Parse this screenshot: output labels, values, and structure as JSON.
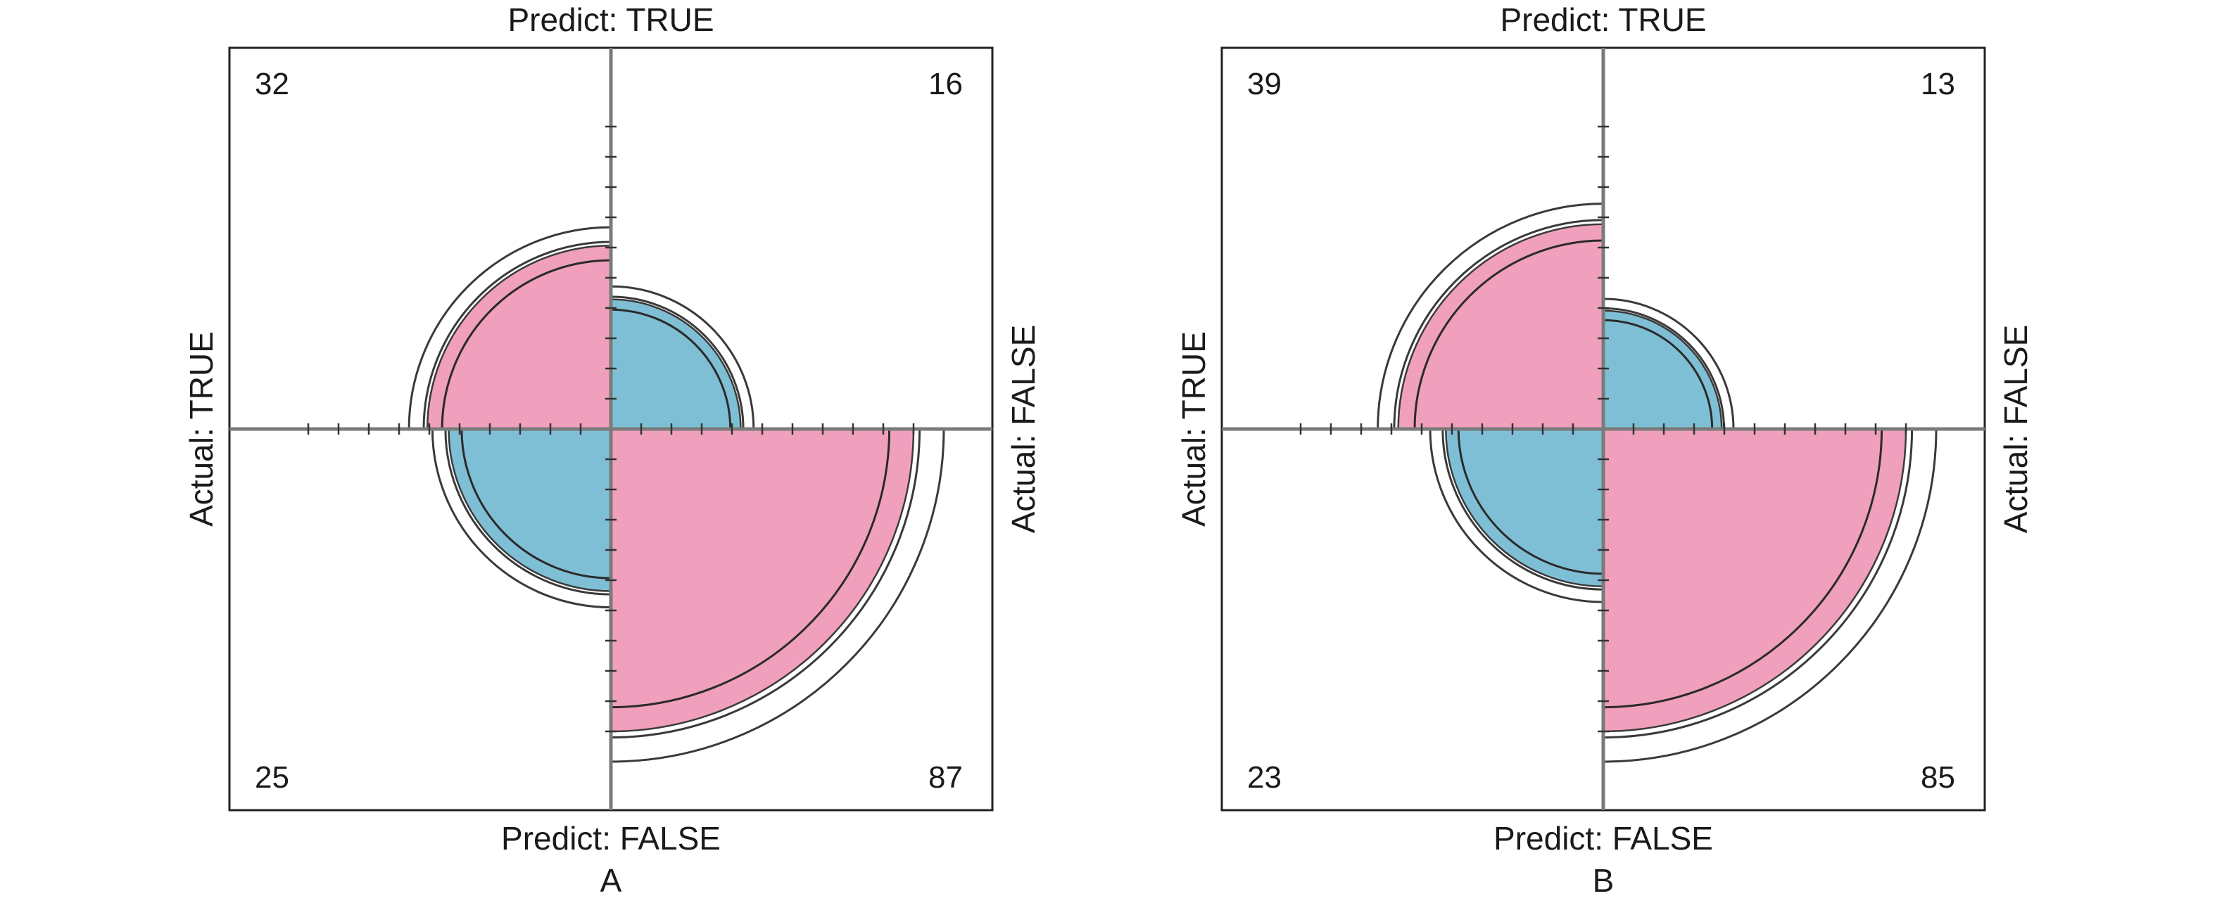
{
  "chart_data": [
    {
      "type": "fourfold",
      "caption": "A",
      "top_label": "Predict: TRUE",
      "bottom_label": "Predict: FALSE",
      "left_label": "Actual: TRUE",
      "right_label": "Actual: FALSE",
      "cells": [
        {
          "position": "top-left",
          "actual": "TRUE",
          "predict": "TRUE",
          "count": 32,
          "color": "#f0a0bc"
        },
        {
          "position": "top-right",
          "actual": "FALSE",
          "predict": "TRUE",
          "count": 16,
          "color": "#7fbfd6"
        },
        {
          "position": "bottom-left",
          "actual": "TRUE",
          "predict": "FALSE",
          "count": 25,
          "color": "#7fbfd6"
        },
        {
          "position": "bottom-right",
          "actual": "FALSE",
          "predict": "FALSE",
          "count": 87,
          "color": "#f0a0bc"
        }
      ]
    },
    {
      "type": "fourfold",
      "caption": "B",
      "top_label": "Predict: TRUE",
      "bottom_label": "Predict: FALSE",
      "left_label": "Actual: TRUE",
      "right_label": "Actual: FALSE",
      "cells": [
        {
          "position": "top-left",
          "actual": "TRUE",
          "predict": "TRUE",
          "count": 39,
          "color": "#f0a0bc"
        },
        {
          "position": "top-right",
          "actual": "FALSE",
          "predict": "TRUE",
          "count": 13,
          "color": "#7fbfd6"
        },
        {
          "position": "bottom-left",
          "actual": "TRUE",
          "predict": "FALSE",
          "count": 23,
          "color": "#7fbfd6"
        },
        {
          "position": "bottom-right",
          "actual": "FALSE",
          "predict": "FALSE",
          "count": 85,
          "color": "#f0a0bc"
        }
      ]
    }
  ]
}
